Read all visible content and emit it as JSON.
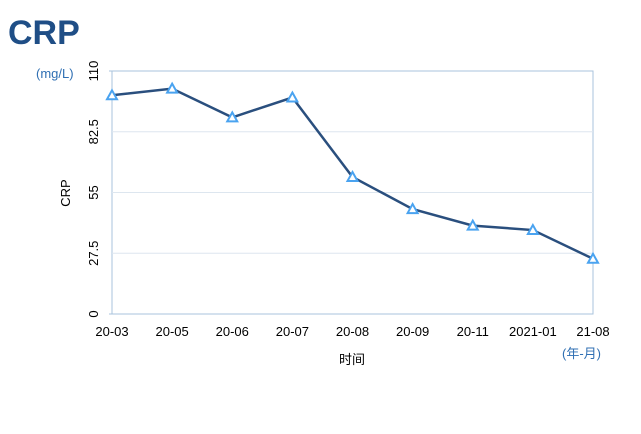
{
  "chart_data": {
    "type": "line",
    "title": "CRP",
    "y_unit": "(mg/L)",
    "x_unit": "(年-月)",
    "x_label": "时间",
    "y_label": "CRP",
    "categories": [
      "20-03",
      "20-05",
      "20-06",
      "20-07",
      "20-08",
      "20-09",
      "20-11",
      "2021-01",
      "21-08"
    ],
    "series": [
      {
        "name": "CRP",
        "color": "#2a4f7e",
        "marker_color": "#4aa3f0",
        "values": [
          99,
          102,
          89,
          98,
          62,
          47.5,
          40,
          38,
          25
        ]
      }
    ],
    "ylim": [
      0,
      110
    ],
    "yticks": [
      0,
      27.5,
      55,
      82.5,
      110
    ],
    "grid": true
  }
}
